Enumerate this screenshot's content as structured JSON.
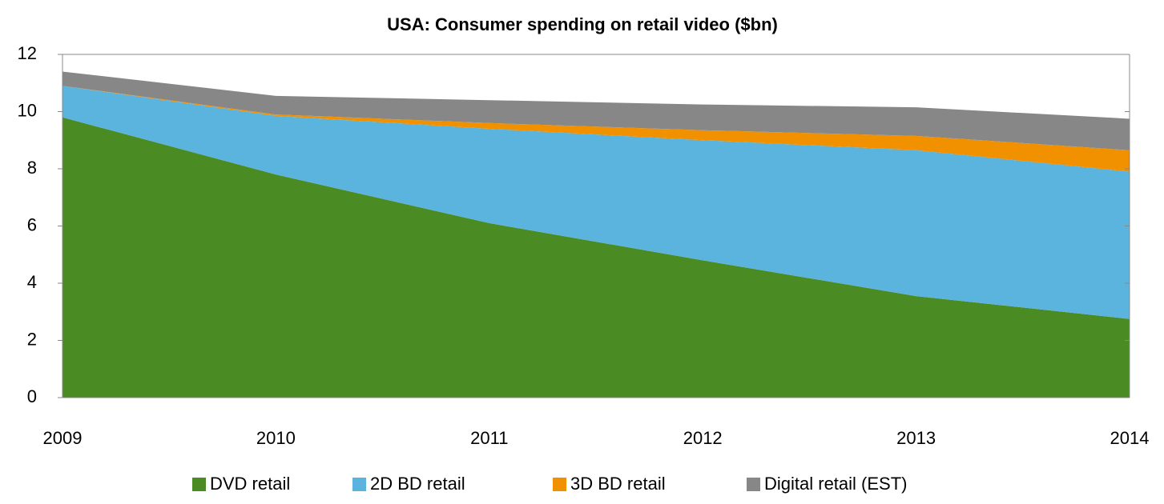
{
  "chart_data": {
    "type": "stacked_area",
    "title": "USA: Consumer spending on retail video ($bn)",
    "categories": [
      "2009",
      "2010",
      "2011",
      "2012",
      "2013",
      "2014"
    ],
    "series": [
      {
        "name": "DVD retail",
        "color": "#4a8c23",
        "values": [
          9.8,
          7.8,
          6.1,
          4.8,
          3.55,
          2.75
        ]
      },
      {
        "name": "2D BD retail",
        "color": "#5ab4de",
        "values": [
          1.1,
          2.05,
          3.3,
          4.2,
          5.1,
          5.15
        ]
      },
      {
        "name": "3D BD retail",
        "color": "#f29100",
        "values": [
          0,
          0.05,
          0.2,
          0.35,
          0.5,
          0.75
        ]
      },
      {
        "name": "Digital retail (EST)",
        "color": "#878787",
        "values": [
          0.5,
          0.65,
          0.8,
          0.9,
          1.0,
          1.1
        ]
      }
    ],
    "ylim": [
      0,
      12
    ],
    "yticks": [
      0,
      2,
      4,
      6,
      8,
      10,
      12
    ],
    "legend": "bottom"
  }
}
